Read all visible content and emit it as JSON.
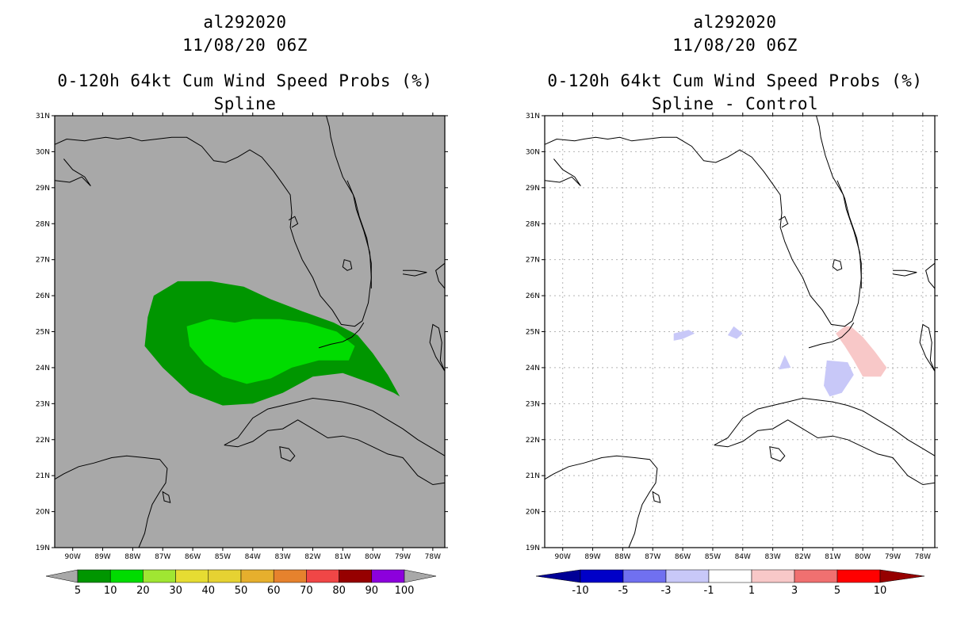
{
  "left_panel": {
    "title_line1": "al292020",
    "title_line2": "11/08/20 06Z",
    "title_line3": "0-120h 64kt Cum Wind Speed Probs (%)",
    "title_line4": "Spline",
    "background_color": "#a8a8a8",
    "colorbar": {
      "labels": [
        "5",
        "10",
        "20",
        "30",
        "40",
        "50",
        "60",
        "70",
        "80",
        "90",
        "100"
      ],
      "colors": [
        "#009600",
        "#00dc00",
        "#a0e632",
        "#e6dc32",
        "#e6d232",
        "#e6af2d",
        "#e6822d",
        "#f04646",
        "#960000",
        "#8c00dc"
      ],
      "end_color": "#a8a8a8"
    },
    "contours": [
      {
        "level": "5-10",
        "color": "#009600"
      },
      {
        "level": "10-20",
        "color": "#00dc00"
      }
    ]
  },
  "right_panel": {
    "title_line1": "al292020",
    "title_line2": "11/08/20 06Z",
    "title_line3": "0-120h 64kt Cum Wind Speed Probs (%)",
    "title_line4": "Spline - Control",
    "background_color": "#ffffff",
    "colorbar": {
      "labels": [
        "-10",
        "-5",
        "-3",
        "-1",
        "1",
        "3",
        "5",
        "10"
      ],
      "colors": [
        "#0000c8",
        "#7070f0",
        "#c8c8f8",
        "#ffffff",
        "#f8c8c8",
        "#f07070",
        "#ff0000"
      ],
      "low_end_color": "#000096",
      "high_end_color": "#960000"
    },
    "contours": [
      {
        "level": "-3 to -1",
        "color": "#c8c8f8"
      },
      {
        "level": "1 to 3",
        "color": "#f8c8c8"
      }
    ]
  },
  "map": {
    "lat_labels": [
      "31N",
      "30N",
      "29N",
      "28N",
      "27N",
      "26N",
      "25N",
      "24N",
      "23N",
      "22N",
      "21N",
      "20N",
      "19N"
    ],
    "lon_labels": [
      "90W",
      "89W",
      "88W",
      "87W",
      "86W",
      "85W",
      "84W",
      "83W",
      "82W",
      "81W",
      "80W",
      "79W",
      "78W"
    ],
    "lat_range": [
      19,
      31
    ],
    "lon_range": [
      -90.6,
      -77.6
    ]
  }
}
